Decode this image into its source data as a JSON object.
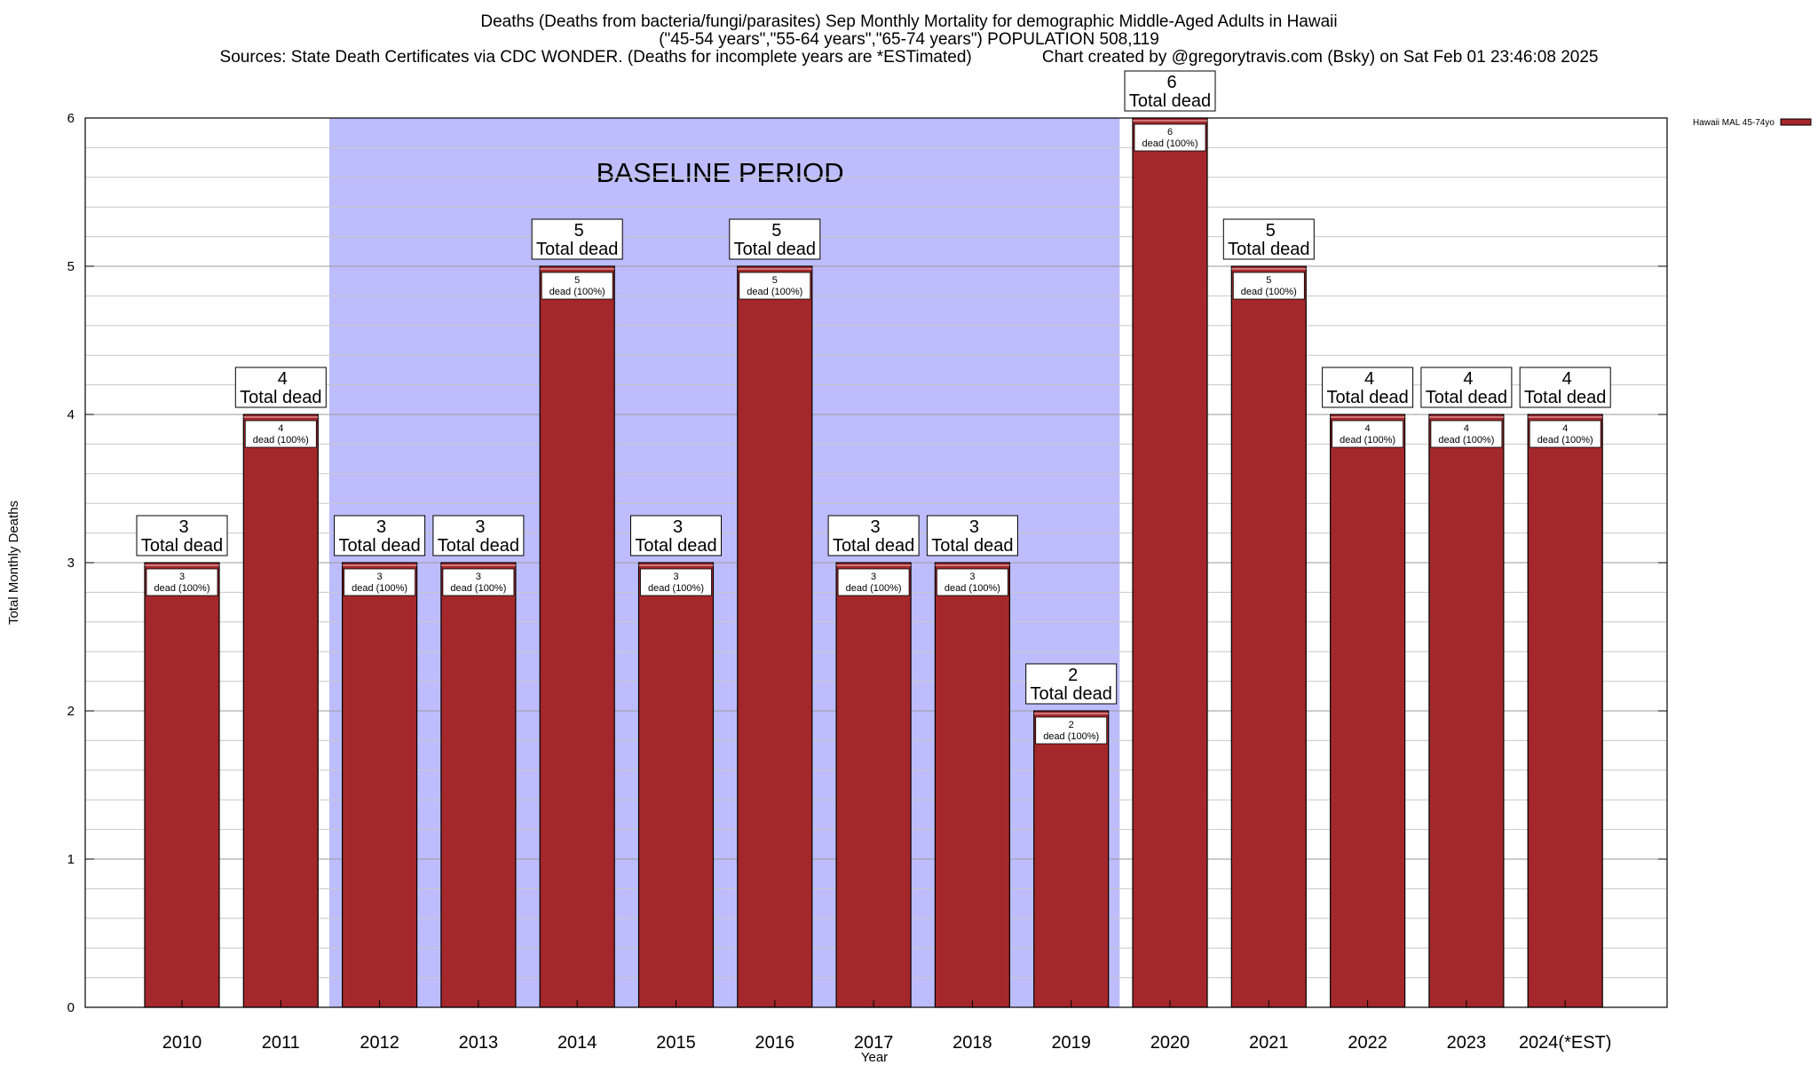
{
  "header": {
    "title_line1": "Deaths (Deaths from bacteria/fungi/parasites) Sep Monthly Mortality for demographic Middle-Aged Adults in Hawaii",
    "title_line2": "(\"45-54 years\",\"55-64 years\",\"65-74 years\") POPULATION 508,119",
    "title_line3": "Sources: State Death Certificates via CDC WONDER. (Deaths for incomplete years are *ESTimated)               Chart created by @gregorytravis.com (Bsky) on Sat Feb 01 23:46:08 2025"
  },
  "chart_data": {
    "type": "bar",
    "xlabel": "Year",
    "ylabel": "Total Monthly Deaths",
    "ylim": [
      0,
      6
    ],
    "yticks": [
      0,
      1,
      2,
      3,
      4,
      5,
      6
    ],
    "grid": true,
    "categories": [
      "2010",
      "2011",
      "2012",
      "2013",
      "2014",
      "2015",
      "2016",
      "2017",
      "2018",
      "2019",
      "2020",
      "2021",
      "2022",
      "2023",
      "2024(*EST)"
    ],
    "series": [
      {
        "name": "Hawaii MAL 45-74yo",
        "values": [
          3,
          4,
          3,
          3,
          5,
          3,
          5,
          3,
          3,
          2,
          6,
          5,
          4,
          4,
          4
        ]
      }
    ],
    "top_label_suffix": "Total dead",
    "inner_label_suffix": "dead (100%)",
    "baseline": {
      "label": "BASELINE PERIOD",
      "from": "2012",
      "to": "2019"
    },
    "legend_position": "top-right",
    "colors": {
      "bar": "#a4282b",
      "baseline": "#bdbdfd",
      "grid": "#c8c8c8"
    }
  }
}
